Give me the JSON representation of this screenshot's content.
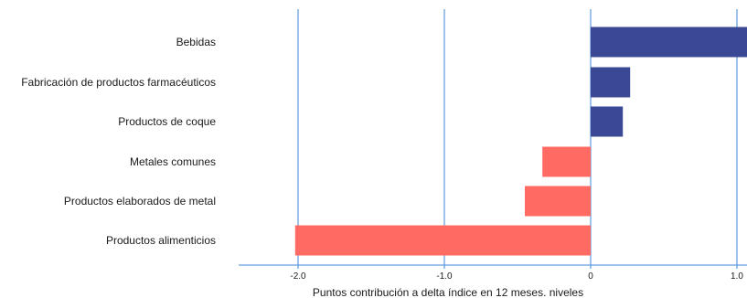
{
  "chart_data": {
    "type": "bar",
    "orientation": "horizontal",
    "categories": [
      "Bebidas",
      "Fabricación de productos farmacéuticos",
      "Productos de coque",
      "Metales comunes",
      "Productos elaborados de metal",
      "Productos alimenticios"
    ],
    "values": [
      1.08,
      0.27,
      0.22,
      -0.33,
      -0.45,
      -2.02
    ],
    "xlabel": "Puntos contribución a delta índice en 12 meses. niveles",
    "ylabel": "",
    "xlim": [
      -2.4,
      1.08
    ],
    "xticks": [
      -2.0,
      -1.0,
      0,
      1.0
    ],
    "xtick_labels": [
      "-2.0",
      "-1.0",
      "0",
      "1.0"
    ],
    "grid": "vertical",
    "colors": {
      "positive": "#3a4895",
      "negative": "#ff6b63",
      "grid": "#3f86d6",
      "axis": "#3f86d6"
    }
  }
}
